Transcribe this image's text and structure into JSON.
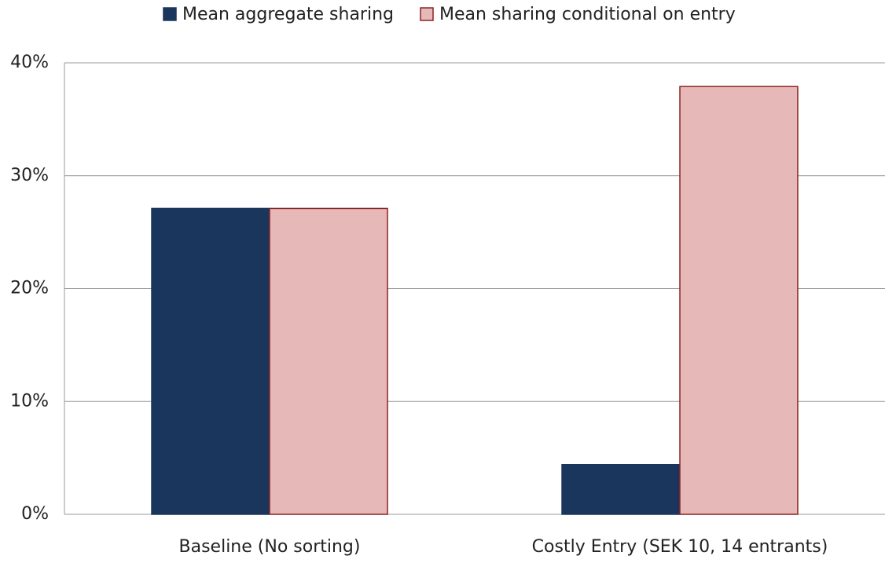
{
  "chart_data": {
    "type": "bar",
    "categories": [
      "Baseline (No sorting)",
      "Costly Entry (SEK 10, 14 entrants)"
    ],
    "series": [
      {
        "name": "Mean aggregate sharing",
        "color": "#1b365d",
        "values": [
          27.1,
          4.4
        ]
      },
      {
        "name": "Mean sharing conditional on entry",
        "color": "#e6b8b7",
        "values": [
          27.1,
          37.9
        ]
      }
    ],
    "ylim": [
      0,
      40
    ],
    "yticks": [
      {
        "value": 0,
        "label": "0%"
      },
      {
        "value": 10,
        "label": "10%"
      },
      {
        "value": 20,
        "label": "20%"
      },
      {
        "value": 30,
        "label": "30%"
      },
      {
        "value": 40,
        "label": "40%"
      }
    ],
    "grid": true,
    "legend": "top"
  }
}
